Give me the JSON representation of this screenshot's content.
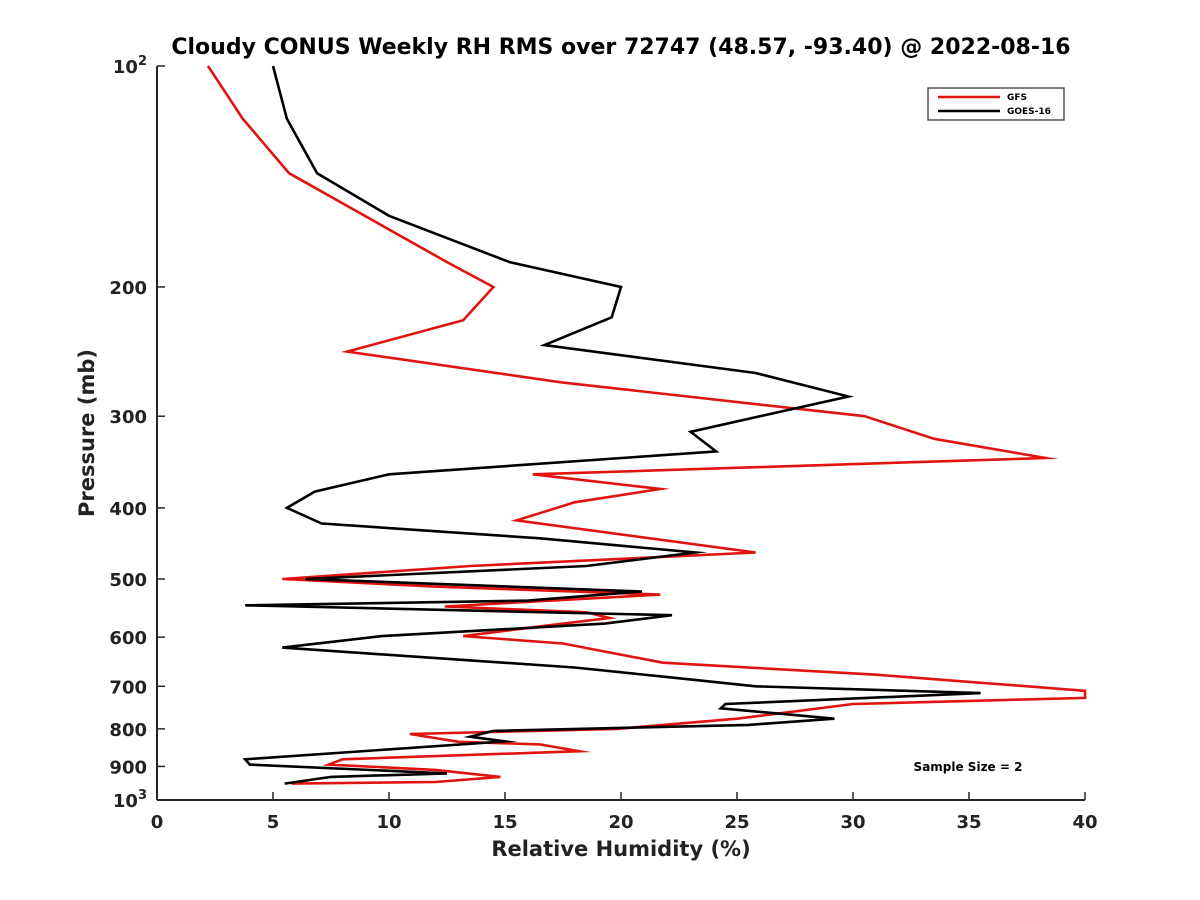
{
  "chart_data": {
    "type": "line",
    "title": "Cloudy CONUS Weekly RH RMS over 72747 (48.57, -93.40) @ 2022-08-16",
    "xlabel": "Relative Humidity (%)",
    "ylabel": "Pressure (mb)",
    "xlim": [
      0,
      40
    ],
    "ylim": [
      100,
      1000
    ],
    "y_scale": "log",
    "y_reversed": true,
    "grid": false,
    "x_ticks": [
      "0",
      "5",
      "10",
      "15",
      "20",
      "25",
      "30",
      "35",
      "40"
    ],
    "y_ticks": [
      {
        "value": 100,
        "label": "10",
        "sup": "2"
      },
      {
        "value": 200,
        "label": "200"
      },
      {
        "value": 300,
        "label": "300"
      },
      {
        "value": 400,
        "label": "400"
      },
      {
        "value": 500,
        "label": "500"
      },
      {
        "value": 600,
        "label": "600"
      },
      {
        "value": 700,
        "label": "700"
      },
      {
        "value": 800,
        "label": "800"
      },
      {
        "value": 900,
        "label": "900"
      },
      {
        "value": 1000,
        "label": "10",
        "sup": "3"
      }
    ],
    "legend_position": "top-right",
    "annotation": "Sample Size = 2",
    "series": [
      {
        "name": "GFS",
        "color": "#e0140f",
        "points": [
          [
            2.2,
            100
          ],
          [
            3.7,
            118
          ],
          [
            5.7,
            140
          ],
          [
            12.5,
            185
          ],
          [
            14.5,
            200
          ],
          [
            13.2,
            222
          ],
          [
            8.2,
            245
          ],
          [
            17.5,
            270
          ],
          [
            30.5,
            300
          ],
          [
            33.5,
            322
          ],
          [
            38.3,
            342
          ],
          [
            16.2,
            360
          ],
          [
            21.7,
            377
          ],
          [
            18.0,
            393
          ],
          [
            15.5,
            416
          ],
          [
            25.8,
            460
          ],
          [
            13.5,
            480
          ],
          [
            5.4,
            500
          ],
          [
            12.0,
            512
          ],
          [
            21.7,
            525
          ],
          [
            12.4,
            545
          ],
          [
            18.5,
            555
          ],
          [
            19.5,
            565
          ],
          [
            16.5,
            580
          ],
          [
            13.2,
            598
          ],
          [
            17.5,
            612
          ],
          [
            21.8,
            650
          ],
          [
            31.0,
            675
          ],
          [
            40.0,
            710
          ],
          [
            40.0,
            726
          ],
          [
            30.0,
            740
          ],
          [
            25.0,
            775
          ],
          [
            19.8,
            800
          ],
          [
            10.9,
            813
          ],
          [
            13.0,
            833
          ],
          [
            16.5,
            840
          ],
          [
            18.2,
            858
          ],
          [
            8.0,
            880
          ],
          [
            7.4,
            895
          ],
          [
            12.0,
            910
          ],
          [
            14.8,
            930
          ],
          [
            12.0,
            945
          ],
          [
            5.8,
            950
          ]
        ]
      },
      {
        "name": "GOES-16",
        "color": "#000000",
        "points": [
          [
            5.0,
            100
          ],
          [
            5.6,
            118
          ],
          [
            6.9,
            140
          ],
          [
            10.0,
            160
          ],
          [
            15.2,
            185
          ],
          [
            20.0,
            200
          ],
          [
            19.6,
            220
          ],
          [
            16.7,
            240
          ],
          [
            25.8,
            262
          ],
          [
            29.8,
            282
          ],
          [
            23.0,
            315
          ],
          [
            24.1,
            335
          ],
          [
            10.0,
            360
          ],
          [
            6.8,
            380
          ],
          [
            5.6,
            400
          ],
          [
            7.1,
            420
          ],
          [
            16.5,
            440
          ],
          [
            23.2,
            460
          ],
          [
            18.5,
            480
          ],
          [
            6.4,
            500
          ],
          [
            20.9,
            520
          ],
          [
            16.0,
            535
          ],
          [
            3.8,
            543
          ],
          [
            22.2,
            560
          ],
          [
            19.3,
            575
          ],
          [
            9.7,
            598
          ],
          [
            5.4,
            620
          ],
          [
            18.0,
            660
          ],
          [
            22.0,
            680
          ],
          [
            25.8,
            700
          ],
          [
            35.5,
            715
          ],
          [
            24.5,
            740
          ],
          [
            24.3,
            750
          ],
          [
            29.2,
            775
          ],
          [
            25.5,
            790
          ],
          [
            14.5,
            805
          ],
          [
            13.5,
            820
          ],
          [
            15.0,
            832
          ],
          [
            3.8,
            880
          ],
          [
            4.0,
            895
          ],
          [
            12.5,
            920
          ],
          [
            7.5,
            930
          ],
          [
            5.5,
            950
          ]
        ]
      }
    ]
  }
}
